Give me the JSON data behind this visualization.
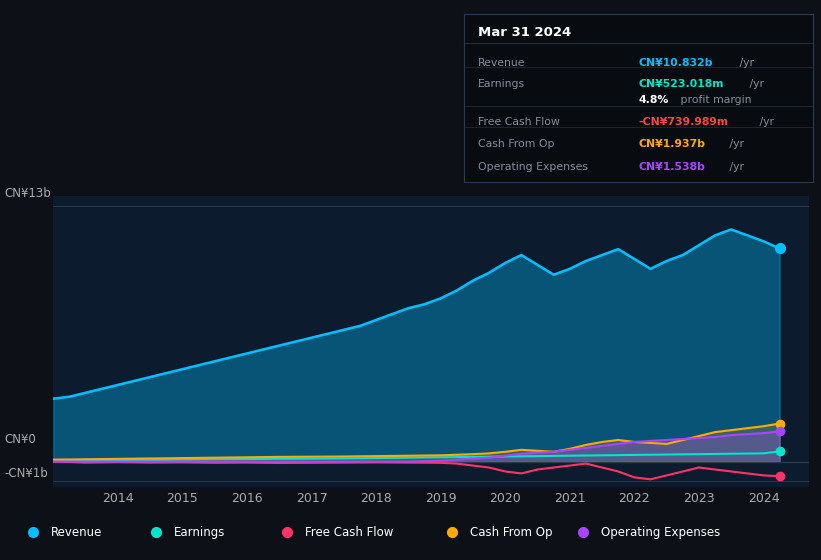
{
  "bg_color": "#0d1117",
  "plot_bg_color": "#0d1b2e",
  "xlim": [
    2013.0,
    2024.7
  ],
  "ylim": [
    -1.3,
    13.5
  ],
  "xticks": [
    2014,
    2015,
    2016,
    2017,
    2018,
    2019,
    2020,
    2021,
    2022,
    2023,
    2024
  ],
  "colors": {
    "revenue": "#00bfff",
    "earnings": "#00e5cc",
    "free_cash_flow": "#ff3366",
    "cash_from_op": "#ffaa00",
    "operating_expenses": "#aa44ff"
  },
  "legend": [
    {
      "label": "Revenue",
      "color": "#00bfff"
    },
    {
      "label": "Earnings",
      "color": "#00e5cc"
    },
    {
      "label": "Free Cash Flow",
      "color": "#ff3366"
    },
    {
      "label": "Cash From Op",
      "color": "#ffaa00"
    },
    {
      "label": "Operating Expenses",
      "color": "#aa44ff"
    }
  ],
  "info_box": {
    "title": "Mar 31 2024",
    "rows": [
      {
        "label": "Revenue",
        "value": "CN¥10.832b",
        "suffix": " /yr",
        "value_color": "#00bfff"
      },
      {
        "label": "Earnings",
        "value": "CN¥523.018m",
        "suffix": " /yr",
        "value_color": "#00e5cc"
      },
      {
        "label": "",
        "value": "4.8%",
        "suffix": " profit margin",
        "value_color": "#ffffff"
      },
      {
        "label": "Free Cash Flow",
        "value": "-CN¥739.989m",
        "suffix": " /yr",
        "value_color": "#ff4444"
      },
      {
        "label": "Cash From Op",
        "value": "CN¥1.937b",
        "suffix": " /yr",
        "value_color": "#ffaa00"
      },
      {
        "label": "Operating Expenses",
        "value": "CN¥1.538b",
        "suffix": " /yr",
        "value_color": "#aa44ff"
      }
    ]
  },
  "revenue": {
    "x": [
      2013.0,
      2013.25,
      2013.5,
      2013.75,
      2014.0,
      2014.25,
      2014.5,
      2014.75,
      2015.0,
      2015.25,
      2015.5,
      2015.75,
      2016.0,
      2016.25,
      2016.5,
      2016.75,
      2017.0,
      2017.25,
      2017.5,
      2017.75,
      2018.0,
      2018.25,
      2018.5,
      2018.75,
      2019.0,
      2019.25,
      2019.5,
      2019.75,
      2020.0,
      2020.25,
      2020.5,
      2020.75,
      2021.0,
      2021.25,
      2021.5,
      2021.75,
      2022.0,
      2022.25,
      2022.5,
      2022.75,
      2023.0,
      2023.25,
      2023.5,
      2023.75,
      2024.0,
      2024.25
    ],
    "y": [
      3.2,
      3.3,
      3.5,
      3.7,
      3.9,
      4.1,
      4.3,
      4.5,
      4.7,
      4.9,
      5.1,
      5.3,
      5.5,
      5.7,
      5.9,
      6.1,
      6.3,
      6.5,
      6.7,
      6.9,
      7.2,
      7.5,
      7.8,
      8.0,
      8.3,
      8.7,
      9.2,
      9.6,
      10.1,
      10.5,
      10.0,
      9.5,
      9.8,
      10.2,
      10.5,
      10.8,
      10.3,
      9.8,
      10.2,
      10.5,
      11.0,
      11.5,
      11.8,
      11.5,
      11.2,
      10.832
    ]
  },
  "earnings": {
    "x": [
      2013.0,
      2013.5,
      2014.0,
      2014.5,
      2015.0,
      2015.5,
      2016.0,
      2016.5,
      2017.0,
      2017.5,
      2018.0,
      2018.5,
      2019.0,
      2019.5,
      2020.0,
      2020.5,
      2021.0,
      2021.5,
      2022.0,
      2022.5,
      2023.0,
      2023.5,
      2024.0,
      2024.25
    ],
    "y": [
      0.05,
      0.06,
      0.07,
      0.08,
      0.1,
      0.12,
      0.13,
      0.14,
      0.15,
      0.16,
      0.18,
      0.2,
      0.22,
      0.24,
      0.26,
      0.28,
      0.3,
      0.32,
      0.34,
      0.36,
      0.38,
      0.4,
      0.42,
      0.523
    ]
  },
  "free_cash_flow": {
    "x": [
      2013.0,
      2013.5,
      2014.0,
      2014.5,
      2015.0,
      2015.5,
      2016.0,
      2016.5,
      2017.0,
      2017.5,
      2018.0,
      2018.5,
      2019.0,
      2019.25,
      2019.5,
      2019.75,
      2020.0,
      2020.25,
      2020.5,
      2020.75,
      2021.0,
      2021.25,
      2021.5,
      2021.75,
      2022.0,
      2022.25,
      2022.5,
      2022.75,
      2023.0,
      2023.25,
      2023.5,
      2023.75,
      2024.0,
      2024.25
    ],
    "y": [
      0.0,
      -0.05,
      -0.03,
      -0.05,
      -0.04,
      -0.06,
      -0.05,
      -0.07,
      -0.06,
      -0.05,
      -0.04,
      -0.05,
      -0.06,
      -0.1,
      -0.2,
      -0.3,
      -0.5,
      -0.6,
      -0.4,
      -0.3,
      -0.2,
      -0.1,
      -0.3,
      -0.5,
      -0.8,
      -0.9,
      -0.7,
      -0.5,
      -0.3,
      -0.4,
      -0.5,
      -0.6,
      -0.7,
      -0.74
    ]
  },
  "cash_from_op": {
    "x": [
      2013.0,
      2013.5,
      2014.0,
      2014.5,
      2015.0,
      2015.5,
      2016.0,
      2016.5,
      2017.0,
      2017.5,
      2018.0,
      2018.5,
      2019.0,
      2019.25,
      2019.5,
      2019.75,
      2020.0,
      2020.25,
      2020.5,
      2020.75,
      2021.0,
      2021.25,
      2021.5,
      2021.75,
      2022.0,
      2022.25,
      2022.5,
      2022.75,
      2023.0,
      2023.25,
      2023.5,
      2023.75,
      2024.0,
      2024.25
    ],
    "y": [
      0.1,
      0.12,
      0.14,
      0.16,
      0.18,
      0.2,
      0.22,
      0.24,
      0.25,
      0.26,
      0.28,
      0.3,
      0.32,
      0.35,
      0.38,
      0.42,
      0.5,
      0.6,
      0.55,
      0.5,
      0.65,
      0.85,
      1.0,
      1.1,
      1.0,
      0.95,
      0.9,
      1.1,
      1.3,
      1.5,
      1.6,
      1.7,
      1.8,
      1.937
    ]
  },
  "operating_expenses": {
    "x": [
      2013.0,
      2013.5,
      2014.0,
      2014.5,
      2015.0,
      2015.5,
      2016.0,
      2016.5,
      2017.0,
      2017.5,
      2018.0,
      2018.5,
      2019.0,
      2019.25,
      2019.5,
      2019.75,
      2020.0,
      2020.25,
      2020.5,
      2020.75,
      2021.0,
      2021.25,
      2021.5,
      2021.75,
      2022.0,
      2022.25,
      2022.5,
      2022.75,
      2023.0,
      2023.25,
      2023.5,
      2023.75,
      2024.0,
      2024.25
    ],
    "y": [
      0.0,
      0.0,
      0.0,
      0.0,
      0.0,
      0.0,
      0.0,
      0.0,
      0.0,
      0.0,
      0.0,
      0.0,
      0.05,
      0.1,
      0.15,
      0.2,
      0.3,
      0.4,
      0.45,
      0.5,
      0.6,
      0.7,
      0.8,
      0.9,
      1.0,
      1.05,
      1.1,
      1.15,
      1.2,
      1.25,
      1.35,
      1.4,
      1.45,
      1.538
    ]
  }
}
